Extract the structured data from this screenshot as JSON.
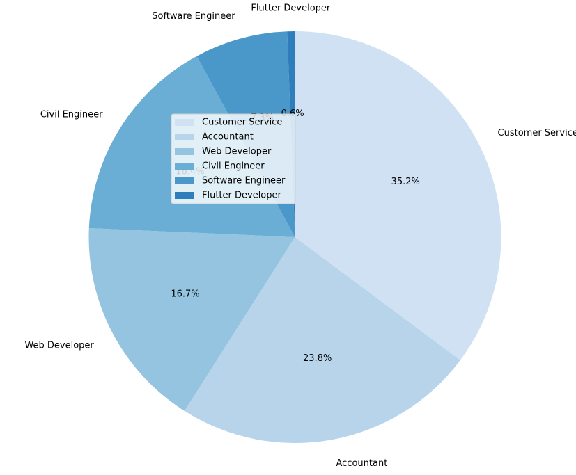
{
  "chart_data": {
    "type": "pie",
    "title": "",
    "categories": [
      "Customer Service",
      "Accountant",
      "Web Developer",
      "Civil Engineer",
      "Software Engineer",
      "Flutter Developer"
    ],
    "values": [
      35.2,
      23.8,
      16.7,
      16.4,
      7.3,
      0.6
    ],
    "percent_labels": [
      "35.2%",
      "23.8%",
      "16.7%",
      "16.4%",
      "7.3%",
      "0.6%"
    ],
    "colors": [
      "#cfe1f2",
      "#b7d4ea",
      "#94c4df",
      "#6aaed6",
      "#4a98c9",
      "#2e7ebc"
    ],
    "start_angle_deg": 90,
    "direction": "clockwise",
    "legend": {
      "placement": "upper-center-left",
      "entries": [
        "Customer Service",
        "Accountant",
        "Web Developer",
        "Civil Engineer",
        "Software Engineer",
        "Flutter Developer"
      ]
    }
  }
}
